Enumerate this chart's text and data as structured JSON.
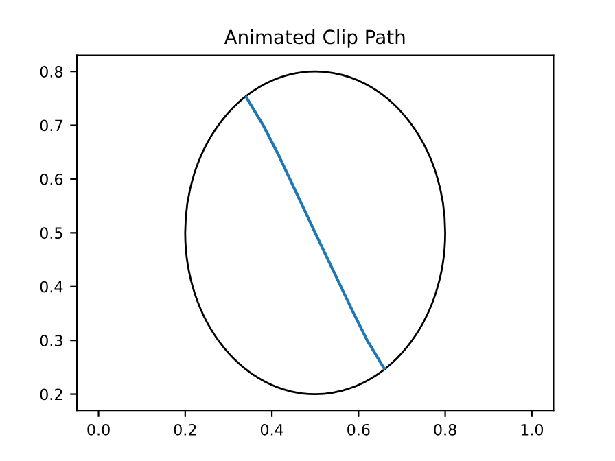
{
  "chart_data": {
    "type": "line",
    "title": "Animated Clip Path",
    "series": [
      {
        "color": "#1f77b4",
        "x": [
          0.341,
          0.38,
          0.417,
          0.5,
          0.586,
          0.62,
          0.659
        ],
        "values": [
          0.752,
          0.7,
          0.642,
          0.5,
          0.355,
          0.3,
          0.248
        ]
      }
    ],
    "xlim": [
      -0.05,
      1.05
    ],
    "xticks": [
      {
        "value": 0,
        "label": "0.0"
      },
      0.2,
      0.4,
      0.6,
      0.8,
      {
        "value": 1,
        "label": "1.0"
      }
    ],
    "ylim": [
      0.17,
      0.83
    ],
    "yticks": [
      0.2,
      0.3,
      0.4,
      0.5,
      0.6,
      0.7,
      0.8
    ],
    "grid": false,
    "marker": "none",
    "line_style": "solid"
  }
}
